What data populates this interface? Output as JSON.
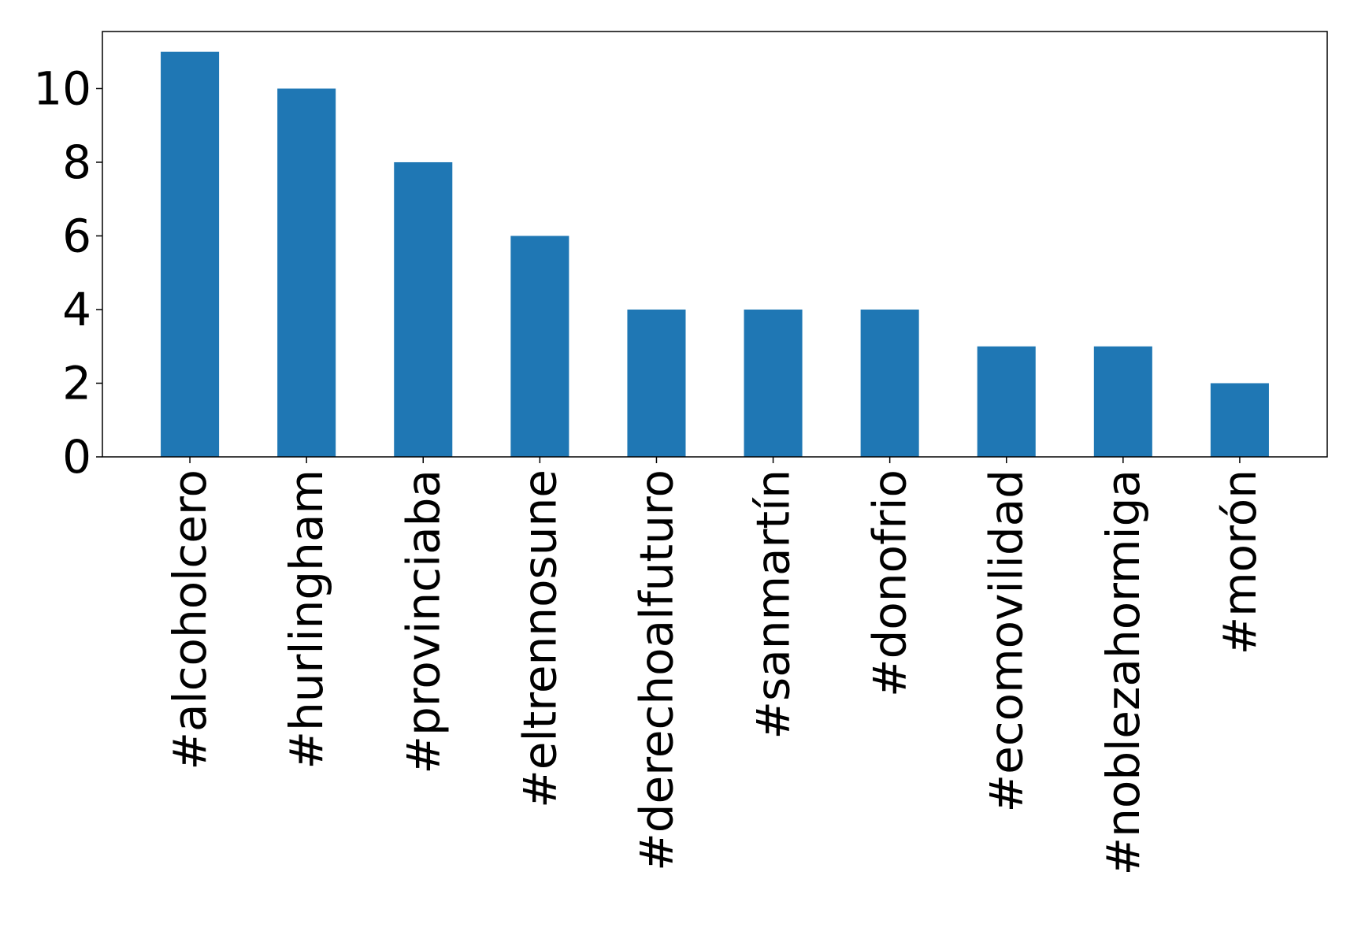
{
  "chart_data": {
    "type": "bar",
    "categories": [
      "#alcoholcero",
      "#hurlingham",
      "#provinciaba",
      "#eltrennosune",
      "#derechoalfuturo",
      "#sanmartín",
      "#donofrio",
      "#ecomovilidad",
      "#noblezahormiga",
      "#morón"
    ],
    "values": [
      11,
      10,
      8,
      6,
      4,
      4,
      4,
      3,
      3,
      2
    ],
    "title": "",
    "xlabel": "",
    "ylabel": "",
    "ylim": [
      0,
      11.55
    ],
    "yticks": [
      0,
      2,
      4,
      6,
      8,
      10
    ],
    "grid": false,
    "legend": "none",
    "bar_color": "#1f77b4",
    "axis_color": "#000000"
  }
}
